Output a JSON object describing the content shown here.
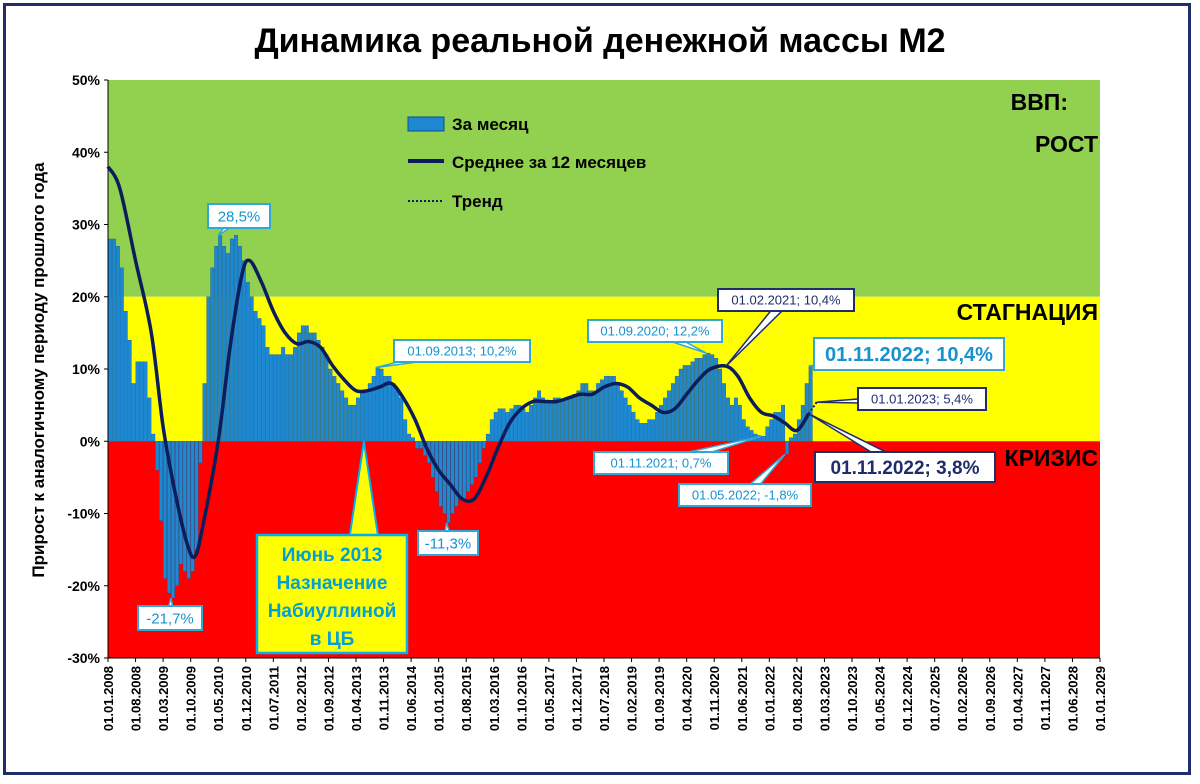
{
  "chart_data": {
    "type": "bar",
    "title": "Динамика реальной денежной массы М2",
    "ylabel": "Прирост к аналогичному периоду прошлого года",
    "xlabel": "",
    "ylim": [
      -30,
      50
    ],
    "yticks": [
      "50%",
      "40%",
      "30%",
      "20%",
      "10%",
      "0%",
      "-10%",
      "-20%",
      "-30%"
    ],
    "ytick_values": [
      50,
      40,
      30,
      20,
      10,
      0,
      -10,
      -20,
      -30
    ],
    "x_range": [
      "2008-01",
      "2029-01"
    ],
    "xticks": [
      "01.01.2008",
      "01.08.2008",
      "01.03.2009",
      "01.10.2009",
      "01.05.2010",
      "01.12.2010",
      "01.07.2011",
      "01.02.2012",
      "01.09.2012",
      "01.04.2013",
      "01.11.2013",
      "01.06.2014",
      "01.01.2015",
      "01.08.2015",
      "01.03.2016",
      "01.10.2016",
      "01.05.2017",
      "01.12.2017",
      "01.07.2018",
      "01.02.2019",
      "01.09.2019",
      "01.04.2020",
      "01.11.2020",
      "01.06.2021",
      "01.01.2022",
      "01.08.2022",
      "01.03.2023",
      "01.10.2023",
      "01.05.2024",
      "01.12.2024",
      "01.07.2025",
      "01.02.2026",
      "01.09.2026",
      "01.04.2027",
      "01.11.2027",
      "01.06.2028",
      "01.01.2029"
    ],
    "zones": [
      {
        "label": "ВВП:",
        "label2": "РОСТ",
        "from": 20,
        "to": 50,
        "color": "#92d050"
      },
      {
        "label": "СТАГНАЦИЯ",
        "from": 0,
        "to": 20,
        "color": "#ffff00"
      },
      {
        "label": "КРИЗИС",
        "from": -30,
        "to": 0,
        "color": "#ff0000"
      }
    ],
    "legend": {
      "position": "top-left",
      "items": [
        "За месяц",
        "Среднее за 12 месяцев",
        "Тренд"
      ]
    },
    "series": [
      {
        "name": "За месяц",
        "type": "bar",
        "color": "#1e88d0",
        "points": [
          [
            "2008-01",
            28
          ],
          [
            "2008-02",
            28
          ],
          [
            "2008-03",
            27
          ],
          [
            "2008-04",
            24
          ],
          [
            "2008-05",
            18
          ],
          [
            "2008-06",
            14
          ],
          [
            "2008-07",
            8
          ],
          [
            "2008-08",
            11
          ],
          [
            "2008-09",
            11
          ],
          [
            "2008-10",
            11
          ],
          [
            "2008-11",
            6
          ],
          [
            "2008-12",
            1
          ],
          [
            "2009-01",
            -4
          ],
          [
            "2009-02",
            -11
          ],
          [
            "2009-03",
            -19
          ],
          [
            "2009-04",
            -21
          ],
          [
            "2009-05",
            -21.7
          ],
          [
            "2009-06",
            -20
          ],
          [
            "2009-07",
            -17
          ],
          [
            "2009-08",
            -18
          ],
          [
            "2009-09",
            -19
          ],
          [
            "2009-10",
            -18
          ],
          [
            "2009-11",
            -15
          ],
          [
            "2009-12",
            -3
          ],
          [
            "2010-01",
            8
          ],
          [
            "2010-02",
            20
          ],
          [
            "2010-03",
            24
          ],
          [
            "2010-04",
            27
          ],
          [
            "2010-05",
            28.5
          ],
          [
            "2010-06",
            27
          ],
          [
            "2010-07",
            26
          ],
          [
            "2010-08",
            28
          ],
          [
            "2010-09",
            28.5
          ],
          [
            "2010-10",
            27
          ],
          [
            "2010-11",
            25
          ],
          [
            "2010-12",
            22
          ],
          [
            "2011-01",
            20
          ],
          [
            "2011-02",
            18
          ],
          [
            "2011-03",
            17
          ],
          [
            "2011-04",
            16
          ],
          [
            "2011-05",
            13
          ],
          [
            "2011-06",
            12
          ],
          [
            "2011-07",
            12
          ],
          [
            "2011-08",
            12
          ],
          [
            "2011-09",
            13
          ],
          [
            "2011-10",
            12
          ],
          [
            "2011-11",
            12
          ],
          [
            "2011-12",
            13
          ],
          [
            "2012-01",
            15
          ],
          [
            "2012-02",
            16
          ],
          [
            "2012-03",
            16
          ],
          [
            "2012-04",
            15
          ],
          [
            "2012-05",
            15
          ],
          [
            "2012-06",
            14
          ],
          [
            "2012-07",
            13
          ],
          [
            "2012-08",
            12
          ],
          [
            "2012-09",
            10
          ],
          [
            "2012-10",
            9
          ],
          [
            "2012-11",
            8
          ],
          [
            "2012-12",
            7
          ],
          [
            "2013-01",
            6
          ],
          [
            "2013-02",
            5
          ],
          [
            "2013-03",
            5
          ],
          [
            "2013-04",
            6
          ],
          [
            "2013-05",
            7
          ],
          [
            "2013-06",
            7
          ],
          [
            "2013-07",
            8
          ],
          [
            "2013-08",
            9
          ],
          [
            "2013-09",
            10.2
          ],
          [
            "2013-10",
            10
          ],
          [
            "2013-11",
            9
          ],
          [
            "2013-12",
            9
          ],
          [
            "2014-01",
            8
          ],
          [
            "2014-02",
            7
          ],
          [
            "2014-03",
            6
          ],
          [
            "2014-04",
            3
          ],
          [
            "2014-05",
            1
          ],
          [
            "2014-06",
            0.5
          ],
          [
            "2014-07",
            -1
          ],
          [
            "2014-08",
            -1
          ],
          [
            "2014-09",
            -2
          ],
          [
            "2014-10",
            -3
          ],
          [
            "2014-11",
            -5
          ],
          [
            "2014-12",
            -7
          ],
          [
            "2015-01",
            -9
          ],
          [
            "2015-02",
            -10
          ],
          [
            "2015-03",
            -11.3
          ],
          [
            "2015-04",
            -10
          ],
          [
            "2015-05",
            -9
          ],
          [
            "2015-06",
            -8
          ],
          [
            "2015-07",
            -8
          ],
          [
            "2015-08",
            -7
          ],
          [
            "2015-09",
            -6
          ],
          [
            "2015-10",
            -5
          ],
          [
            "2015-11",
            -3
          ],
          [
            "2015-12",
            -1
          ],
          [
            "2016-01",
            1
          ],
          [
            "2016-02",
            3
          ],
          [
            "2016-03",
            4
          ],
          [
            "2016-04",
            4.5
          ],
          [
            "2016-05",
            4.5
          ],
          [
            "2016-06",
            4
          ],
          [
            "2016-07",
            4.5
          ],
          [
            "2016-08",
            5
          ],
          [
            "2016-09",
            5
          ],
          [
            "2016-10",
            4.5
          ],
          [
            "2016-11",
            4
          ],
          [
            "2016-12",
            5
          ],
          [
            "2017-01",
            6
          ],
          [
            "2017-02",
            7
          ],
          [
            "2017-03",
            6
          ],
          [
            "2017-04",
            5.5
          ],
          [
            "2017-05",
            5.5
          ],
          [
            "2017-06",
            6
          ],
          [
            "2017-07",
            6
          ],
          [
            "2017-08",
            5.5
          ],
          [
            "2017-09",
            6
          ],
          [
            "2017-10",
            6
          ],
          [
            "2017-11",
            6.5
          ],
          [
            "2017-12",
            7
          ],
          [
            "2018-01",
            8
          ],
          [
            "2018-02",
            8
          ],
          [
            "2018-03",
            7
          ],
          [
            "2018-04",
            7
          ],
          [
            "2018-05",
            8
          ],
          [
            "2018-06",
            8.5
          ],
          [
            "2018-07",
            9
          ],
          [
            "2018-08",
            9
          ],
          [
            "2018-09",
            9
          ],
          [
            "2018-10",
            8
          ],
          [
            "2018-11",
            7
          ],
          [
            "2018-12",
            6
          ],
          [
            "2019-01",
            5
          ],
          [
            "2019-02",
            4
          ],
          [
            "2019-03",
            3
          ],
          [
            "2019-04",
            2.5
          ],
          [
            "2019-05",
            2.5
          ],
          [
            "2019-06",
            3
          ],
          [
            "2019-07",
            3
          ],
          [
            "2019-08",
            4
          ],
          [
            "2019-09",
            5
          ],
          [
            "2019-10",
            6
          ],
          [
            "2019-11",
            7
          ],
          [
            "2019-12",
            8
          ],
          [
            "2020-01",
            9
          ],
          [
            "2020-02",
            10
          ],
          [
            "2020-03",
            10.5
          ],
          [
            "2020-04",
            10.5
          ],
          [
            "2020-05",
            11
          ],
          [
            "2020-06",
            11.5
          ],
          [
            "2020-07",
            11.5
          ],
          [
            "2020-08",
            12
          ],
          [
            "2020-09",
            12.2
          ],
          [
            "2020-10",
            12
          ],
          [
            "2020-11",
            11.5
          ],
          [
            "2020-12",
            10
          ],
          [
            "2021-01",
            8
          ],
          [
            "2021-02",
            6
          ],
          [
            "2021-03",
            5
          ],
          [
            "2021-04",
            6
          ],
          [
            "2021-05",
            5
          ],
          [
            "2021-06",
            3
          ],
          [
            "2021-07",
            2
          ],
          [
            "2021-08",
            1.5
          ],
          [
            "2021-09",
            1
          ],
          [
            "2021-10",
            0.8
          ],
          [
            "2021-11",
            0.7
          ],
          [
            "2021-12",
            2
          ],
          [
            "2022-01",
            3
          ],
          [
            "2022-02",
            4
          ],
          [
            "2022-03",
            4
          ],
          [
            "2022-04",
            5
          ],
          [
            "2022-05",
            -1.8
          ],
          [
            "2022-06",
            0.5
          ],
          [
            "2022-07",
            1
          ],
          [
            "2022-08",
            3
          ],
          [
            "2022-09",
            5
          ],
          [
            "2022-10",
            8
          ],
          [
            "2022-11",
            10.4
          ]
        ]
      },
      {
        "name": "Среднее за 12 месяцев",
        "type": "line",
        "color": "#0d1c5a",
        "points": [
          [
            "2008-01",
            38
          ],
          [
            "2008-04",
            35
          ],
          [
            "2008-08",
            25
          ],
          [
            "2008-12",
            15
          ],
          [
            "2009-03",
            2
          ],
          [
            "2009-06",
            -7
          ],
          [
            "2009-09",
            -14
          ],
          [
            "2009-11",
            -16
          ],
          [
            "2010-01",
            -12
          ],
          [
            "2010-05",
            0
          ],
          [
            "2010-08",
            13
          ],
          [
            "2010-11",
            23
          ],
          [
            "2011-01",
            25
          ],
          [
            "2011-04",
            22
          ],
          [
            "2011-07",
            18
          ],
          [
            "2011-10",
            15
          ],
          [
            "2012-01",
            13.5
          ],
          [
            "2012-04",
            13.8
          ],
          [
            "2012-07",
            13
          ],
          [
            "2012-10",
            10.5
          ],
          [
            "2013-01",
            8.5
          ],
          [
            "2013-04",
            7
          ],
          [
            "2013-07",
            7
          ],
          [
            "2013-10",
            7.5
          ],
          [
            "2014-01",
            8
          ],
          [
            "2014-04",
            6
          ],
          [
            "2014-07",
            3
          ],
          [
            "2014-10",
            -1
          ],
          [
            "2015-01",
            -4
          ],
          [
            "2015-04",
            -6
          ],
          [
            "2015-07",
            -8
          ],
          [
            "2015-10",
            -8
          ],
          [
            "2016-01",
            -5
          ],
          [
            "2016-04",
            -1
          ],
          [
            "2016-07",
            2.5
          ],
          [
            "2016-10",
            4.5
          ],
          [
            "2017-01",
            5.5
          ],
          [
            "2017-04",
            5.5
          ],
          [
            "2017-07",
            5.5
          ],
          [
            "2017-10",
            6
          ],
          [
            "2018-01",
            6.5
          ],
          [
            "2018-04",
            6.5
          ],
          [
            "2018-07",
            7.5
          ],
          [
            "2018-10",
            8
          ],
          [
            "2019-01",
            7.5
          ],
          [
            "2019-04",
            6
          ],
          [
            "2019-07",
            5
          ],
          [
            "2019-10",
            4
          ],
          [
            "2020-01",
            4.5
          ],
          [
            "2020-04",
            6.5
          ],
          [
            "2020-07",
            8.5
          ],
          [
            "2020-10",
            10
          ],
          [
            "2021-02",
            10.4
          ],
          [
            "2021-05",
            9
          ],
          [
            "2021-08",
            6
          ],
          [
            "2021-11",
            4
          ],
          [
            "2022-02",
            3.5
          ],
          [
            "2022-05",
            2.5
          ],
          [
            "2022-08",
            1.5
          ],
          [
            "2022-11",
            3.8
          ]
        ]
      },
      {
        "name": "Тренд",
        "type": "line",
        "style": "dotted",
        "color": "#0d1c5a",
        "points": [
          [
            "2022-11",
            3.8
          ],
          [
            "2023-01",
            5.4
          ]
        ]
      }
    ],
    "annotations": [
      {
        "text": "28,5%",
        "x": "2010-05",
        "y": 28.5,
        "box": "light"
      },
      {
        "text": "-21,7%",
        "x": "2009-05",
        "y": -21.7,
        "box": "light"
      },
      {
        "text": "01.09.2013; 10,2%",
        "x": "2013-09",
        "y": 10.2,
        "box": "light"
      },
      {
        "text": "-11,3%",
        "x": "2015-03",
        "y": -11.3,
        "box": "light"
      },
      {
        "text": "01.09.2020; 12,2%",
        "x": "2020-09",
        "y": 12.2,
        "box": "light"
      },
      {
        "text": "01.02.2021; 10,4%",
        "x": "2021-02",
        "y": 10.4,
        "box": "dark"
      },
      {
        "text": "01.11.2022; 10,4%",
        "x": "2022-11",
        "y": 10.4,
        "box": "light-big"
      },
      {
        "text": "01.01.2023; 5,4%",
        "x": "2023-01",
        "y": 5.4,
        "box": "dark"
      },
      {
        "text": "01.11.2022; 3,8%",
        "x": "2022-11",
        "y": 3.8,
        "box": "dark-big"
      },
      {
        "text": "01.11.2021; 0,7%",
        "x": "2021-11",
        "y": 0.7,
        "box": "light"
      },
      {
        "text": "01.05.2022; -1,8%",
        "x": "2022-05",
        "y": -1.8,
        "box": "light"
      },
      {
        "text": "Июнь 2013\nНазначение\nНабиуллиной\nв ЦБ",
        "x": "2013-06",
        "y": 0,
        "box": "callout"
      }
    ]
  }
}
